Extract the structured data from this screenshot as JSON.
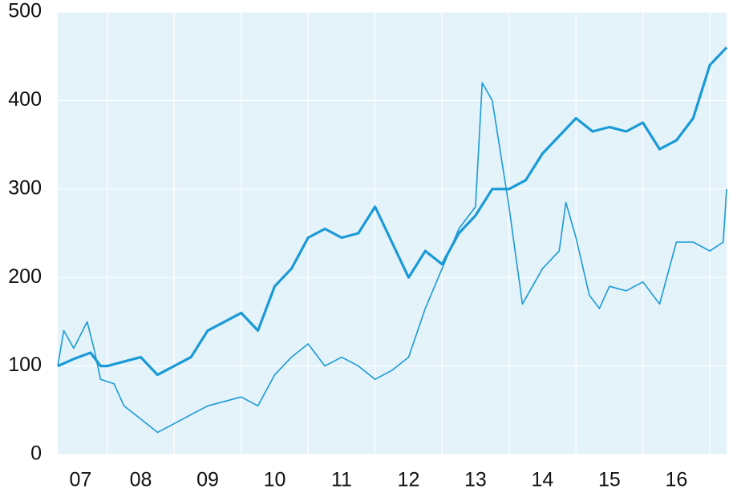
{
  "chart_data": {
    "type": "line",
    "xlim": [
      7.26,
      17.25
    ],
    "xticks": [
      {
        "value": 7.6,
        "label": "07"
      },
      {
        "value": 8.5,
        "label": "08"
      },
      {
        "value": 9.5,
        "label": "09"
      },
      {
        "value": 10.5,
        "label": "10"
      },
      {
        "value": 11.5,
        "label": "11"
      },
      {
        "value": 12.5,
        "label": "12"
      },
      {
        "value": 13.5,
        "label": "13"
      },
      {
        "value": 14.5,
        "label": "14"
      },
      {
        "value": 15.5,
        "label": "15"
      },
      {
        "value": 16.5,
        "label": "16"
      }
    ],
    "ylim": [
      0,
      500
    ],
    "yticks": [
      0,
      100,
      200,
      300,
      400,
      500
    ],
    "grid": true,
    "series": [
      {
        "color": "#1a9ad6",
        "x": [
          7.26,
          7.5,
          7.75,
          7.9,
          8.0,
          8.25,
          8.5,
          8.75,
          9.0,
          9.25,
          9.5,
          9.75,
          10.0,
          10.25,
          10.5,
          10.75,
          11.0,
          11.25,
          11.5,
          11.75,
          12.0,
          12.25,
          12.5,
          12.75,
          13.0,
          13.25,
          13.5,
          13.75,
          14.0,
          14.25,
          14.5,
          14.75,
          15.0,
          15.25,
          15.5,
          15.75,
          16.0,
          16.25,
          16.5,
          16.75,
          17.0,
          17.25
        ],
        "values": [
          100,
          108,
          115,
          100,
          100,
          105,
          110,
          90,
          100,
          110,
          140,
          150,
          160,
          140,
          190,
          210,
          245,
          255,
          245,
          250,
          280,
          240,
          200,
          230,
          215,
          250,
          270,
          300,
          300,
          310,
          340,
          360,
          380,
          365,
          370,
          365,
          375,
          345,
          355,
          380,
          440,
          460
        ]
      },
      {
        "color": "#1a9ad6",
        "x": [
          7.26,
          7.35,
          7.5,
          7.7,
          7.8,
          7.9,
          8.1,
          8.25,
          8.5,
          8.75,
          9.0,
          9.25,
          9.5,
          9.75,
          10.0,
          10.25,
          10.5,
          10.75,
          11.0,
          11.25,
          11.5,
          11.75,
          12.0,
          12.25,
          12.5,
          12.75,
          13.0,
          13.25,
          13.5,
          13.6,
          13.75,
          14.0,
          14.2,
          14.5,
          14.75,
          14.85,
          15.0,
          15.2,
          15.35,
          15.5,
          15.75,
          16.0,
          16.25,
          16.5,
          16.75,
          17.0,
          17.2,
          17.25
        ],
        "values": [
          100,
          140,
          120,
          150,
          120,
          85,
          80,
          55,
          40,
          25,
          35,
          45,
          55,
          60,
          65,
          55,
          90,
          110,
          125,
          100,
          110,
          100,
          85,
          95,
          110,
          165,
          210,
          255,
          280,
          420,
          400,
          280,
          170,
          210,
          230,
          285,
          245,
          180,
          165,
          190,
          185,
          195,
          170,
          240,
          240,
          230,
          240,
          300
        ]
      }
    ]
  }
}
